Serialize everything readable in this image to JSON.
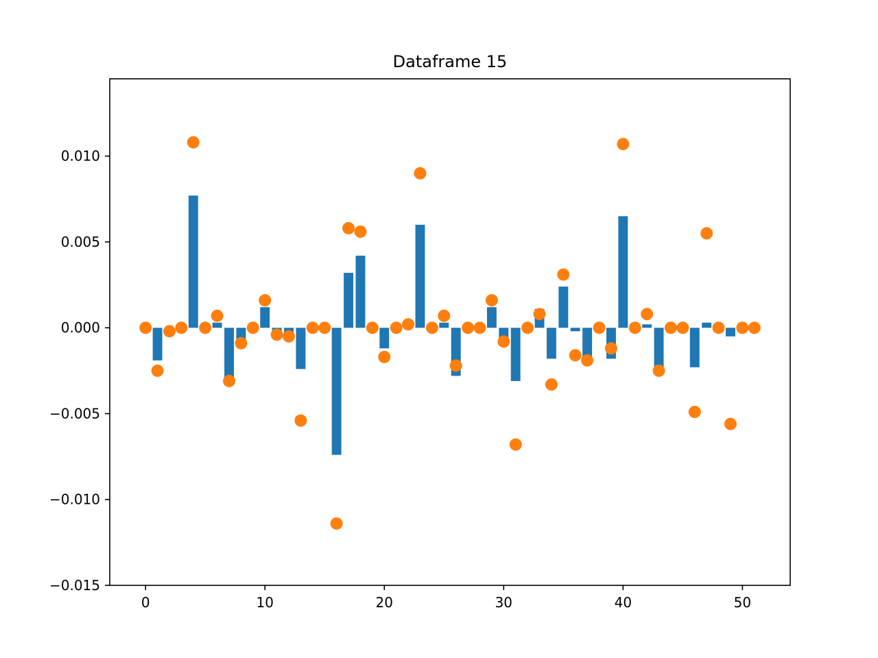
{
  "chart_data": {
    "type": "bar",
    "title": "Dataframe 15",
    "xlabel": "",
    "ylabel": "",
    "xlim": [
      -3,
      54
    ],
    "ylim": [
      -0.015,
      0.0145
    ],
    "x_ticks": [
      0,
      10,
      20,
      30,
      40,
      50
    ],
    "x_tick_labels": [
      "0",
      "10",
      "20",
      "30",
      "40",
      "50"
    ],
    "y_ticks": [
      -0.015,
      -0.01,
      -0.005,
      0.0,
      0.005,
      0.01
    ],
    "y_tick_labels": [
      "−0.015",
      "−0.010",
      "−0.005",
      "0.000",
      "0.005",
      "0.010"
    ],
    "grid": false,
    "x": [
      0,
      1,
      2,
      3,
      4,
      5,
      6,
      7,
      8,
      9,
      10,
      11,
      12,
      13,
      14,
      15,
      16,
      17,
      18,
      19,
      20,
      21,
      22,
      23,
      24,
      25,
      26,
      27,
      28,
      29,
      30,
      31,
      32,
      33,
      34,
      35,
      36,
      37,
      38,
      39,
      40,
      41,
      42,
      43,
      44,
      45,
      46,
      47,
      48,
      49,
      50,
      51
    ],
    "series": [
      {
        "kind": "bar",
        "color": "#1f77b4",
        "values": [
          0.0,
          -0.0019,
          0.0,
          0.0,
          0.0077,
          0.0,
          0.0003,
          -0.0031,
          -0.0007,
          0.0,
          0.0012,
          -0.0003,
          -0.0005,
          -0.0024,
          0.0,
          0.0,
          -0.0074,
          0.0032,
          0.0042,
          0.0,
          -0.0012,
          0.0,
          0.0,
          0.006,
          0.0,
          0.0003,
          -0.0028,
          0.0,
          0.0,
          0.0012,
          -0.0006,
          -0.0031,
          0.0,
          0.0011,
          -0.0018,
          0.0024,
          -0.0002,
          -0.0017,
          0.0,
          -0.0018,
          0.0065,
          0.0,
          0.0002,
          -0.0024,
          0.0,
          0.0,
          -0.0023,
          0.0003,
          0.0,
          -0.0005,
          0.0,
          0.0
        ]
      },
      {
        "kind": "scatter",
        "color": "#ff7f0e",
        "values": [
          0.0,
          -0.0025,
          -0.0002,
          0.0,
          0.0108,
          0.0,
          0.0007,
          -0.0031,
          -0.0009,
          0.0,
          0.0016,
          -0.0004,
          -0.0005,
          -0.0054,
          0.0,
          0.0,
          -0.0114,
          0.0058,
          0.0056,
          0.0,
          -0.0017,
          0.0,
          0.0002,
          0.009,
          0.0,
          0.0007,
          -0.0022,
          0.0,
          0.0,
          0.0016,
          -0.0008,
          -0.0068,
          0.0,
          0.0008,
          -0.0033,
          0.0031,
          -0.0016,
          -0.0019,
          0.0,
          -0.0012,
          0.0107,
          0.0,
          0.0008,
          -0.0025,
          0.0,
          0.0,
          -0.0049,
          0.0055,
          0.0,
          -0.0056,
          0.0,
          0.0
        ]
      }
    ]
  }
}
